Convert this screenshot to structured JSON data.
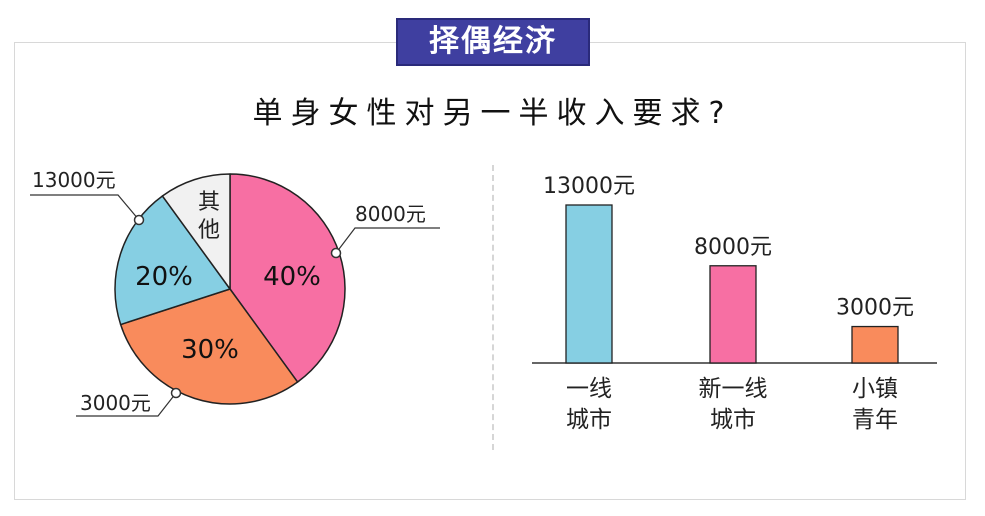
{
  "badge": "择偶经济",
  "title": "单身女性对另一半收入要求?",
  "chart_data": [
    {
      "type": "pie",
      "slices": [
        {
          "label": "40%",
          "value": 40,
          "color": "#f76fa3",
          "callout": "8000元"
        },
        {
          "label": "30%",
          "value": 30,
          "color": "#f98b5c",
          "callout": "3000元"
        },
        {
          "label": "20%",
          "value": 20,
          "color": "#86cfe3",
          "callout": "13000元"
        },
        {
          "label": "其他",
          "value": 10,
          "color": "#f1f1f1",
          "callout": ""
        }
      ]
    },
    {
      "type": "bar",
      "categories": [
        [
          "一线",
          "城市"
        ],
        [
          "新一线",
          "城市"
        ],
        [
          "小镇",
          "青年"
        ]
      ],
      "values": [
        13000,
        8000,
        3000
      ],
      "value_labels": [
        "13000元",
        "8000元",
        "3000元"
      ],
      "colors": [
        "#86cfe3",
        "#f76fa3",
        "#f98b5c"
      ]
    }
  ]
}
